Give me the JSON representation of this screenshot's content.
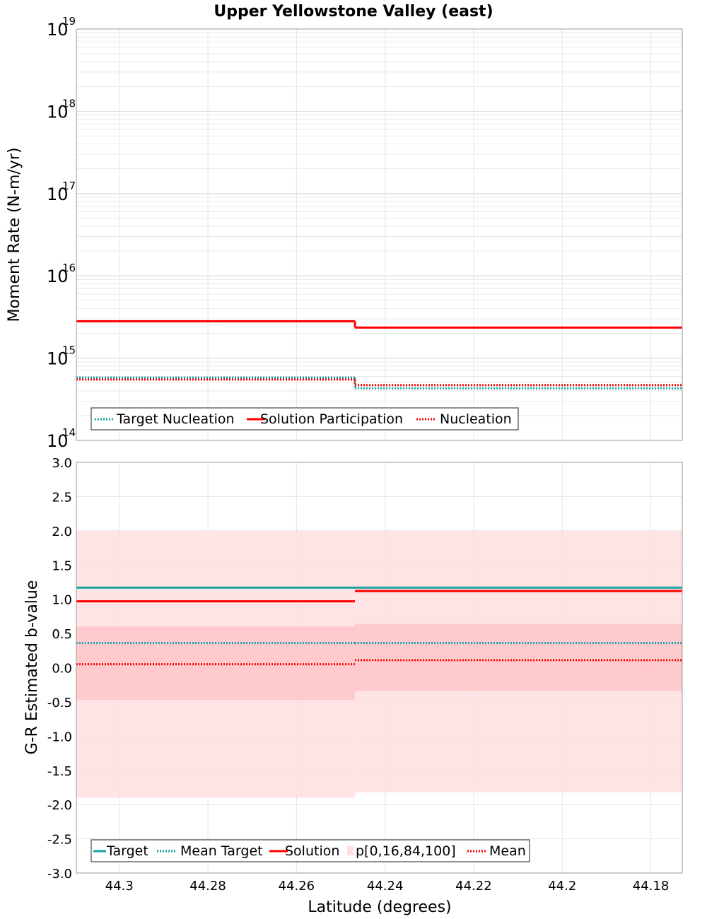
{
  "title": "Upper Yellowstone Valley (east)",
  "colors": {
    "target": "#17a3a3",
    "solution": "#ff0000",
    "band_outer": "#ffdfe1",
    "band_inner": "#ffc7ca",
    "grid": "#e4e4e4",
    "frame": "#999999"
  },
  "chart_data": [
    {
      "type": "line",
      "panel": "top",
      "yscale": "log",
      "ylabel": "Moment Rate (N-m/yr)",
      "xlim": [
        44.3097,
        44.1729
      ],
      "ylim_exponents": [
        14,
        19
      ],
      "ytick_base": "10",
      "ytick_exponents": [
        "14",
        "15",
        "16",
        "17",
        "18",
        "19"
      ],
      "x_segments": [
        [
          44.3097,
          44.2468
        ],
        [
          44.2468,
          44.1729
        ]
      ],
      "series": [
        {
          "name": "Target Nucleation",
          "style": "dotted",
          "color_key": "target",
          "values": [
            580000000000000.0,
            430000000000000.0
          ]
        },
        {
          "name": "Solution Participation",
          "style": "solid",
          "color_key": "solution",
          "values": [
            2800000000000000.0,
            2350000000000000.0
          ]
        },
        {
          "name": "Nucleation",
          "style": "dotted",
          "color_key": "solution",
          "values": [
            550000000000000.0,
            470000000000000.0
          ]
        }
      ],
      "legend": [
        "Target Nucleation",
        "Solution Participation",
        "Nucleation"
      ]
    },
    {
      "type": "line",
      "panel": "bottom",
      "ylabel": "G-R Estimated b-value",
      "xlabel": "Latitude (degrees)",
      "xlim": [
        44.3097,
        44.1729
      ],
      "ylim": [
        -3.0,
        3.0
      ],
      "yticks": [
        "-3.0",
        "-2.5",
        "-2.0",
        "-1.5",
        "-1.0",
        "-0.5",
        "0.0",
        "0.5",
        "1.0",
        "1.5",
        "2.0",
        "2.5",
        "3.0"
      ],
      "xticks": [
        "44.3",
        "44.28",
        "44.26",
        "44.24",
        "44.22",
        "44.2",
        "44.18"
      ],
      "xtick_values": [
        44.3,
        44.28,
        44.26,
        44.24,
        44.22,
        44.2,
        44.18
      ],
      "x_segments": [
        [
          44.3097,
          44.2468
        ],
        [
          44.2468,
          44.1729
        ]
      ],
      "bands": {
        "p0": [
          -1.9,
          -1.82
        ],
        "p16": [
          -0.47,
          -0.34
        ],
        "p84": [
          0.6,
          0.64
        ],
        "p100": [
          2.0,
          2.0
        ]
      },
      "series": [
        {
          "name": "Target",
          "style": "solid",
          "color_key": "target",
          "values": [
            1.17,
            1.17
          ]
        },
        {
          "name": "Mean Target",
          "style": "dotted",
          "color_key": "target",
          "values": [
            0.36,
            0.36
          ]
        },
        {
          "name": "Solution",
          "style": "solid",
          "color_key": "solution",
          "values": [
            0.97,
            1.12
          ]
        },
        {
          "name": "Mean",
          "style": "dotted",
          "color_key": "solution",
          "values": [
            0.05,
            0.11
          ]
        }
      ],
      "legend": [
        "Target",
        "Mean Target",
        "Solution",
        "p[0,16,84,100]",
        "Mean"
      ]
    }
  ]
}
